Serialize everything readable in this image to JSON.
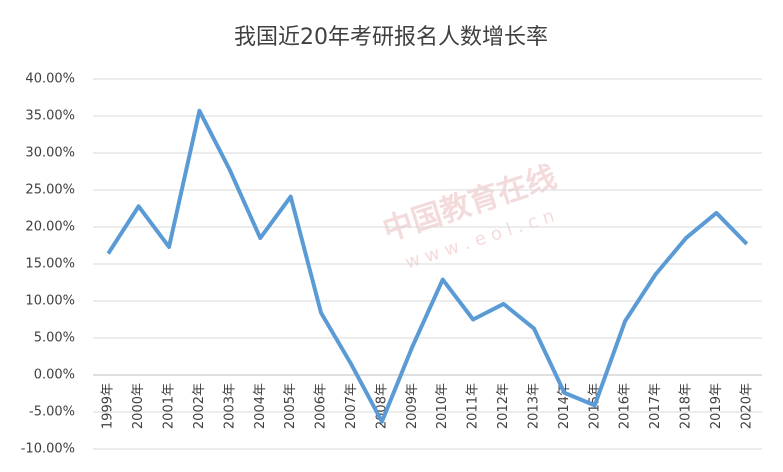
{
  "chart_data": {
    "type": "line",
    "title": "我国近20年考研报名人数增长率",
    "watermark": [
      "中国教育在线",
      "w w w . e o l . c n"
    ],
    "categories": [
      "1999年",
      "2000年",
      "2001年",
      "2002年",
      "2003年",
      "2004年",
      "2005年",
      "2006年",
      "2007年",
      "2008年",
      "2009年",
      "2010年",
      "2011年",
      "2012年",
      "2013年",
      "2014年",
      "2015年",
      "2016年",
      "2017年",
      "2018年",
      "2019年",
      "2020年"
    ],
    "series": [
      {
        "name": "增长率",
        "color": "#5b9bd5",
        "values": [
          16.4,
          22.8,
          17.3,
          35.7,
          27.7,
          18.5,
          24.1,
          8.4,
          1.4,
          -6.3,
          3.8,
          12.9,
          7.5,
          9.6,
          6.3,
          -2.4,
          -4.1,
          7.3,
          13.6,
          18.5,
          21.9,
          17.7
        ]
      }
    ],
    "ylim": [
      -10,
      40
    ],
    "yticks": [
      {
        "value": -10,
        "label": "-10.00%"
      },
      {
        "value": -5,
        "label": "-5.00%"
      },
      {
        "value": 0,
        "label": "0.00%"
      },
      {
        "value": 5,
        "label": "5.00%"
      },
      {
        "value": 10,
        "label": "10.00%"
      },
      {
        "value": 15,
        "label": "15.00%"
      },
      {
        "value": 20,
        "label": "20.00%"
      },
      {
        "value": 25,
        "label": "25.00%"
      },
      {
        "value": 30,
        "label": "30.00%"
      },
      {
        "value": 35,
        "label": "35.00%"
      },
      {
        "value": 40,
        "label": "40.00%"
      }
    ],
    "grid": true,
    "legend": false
  }
}
